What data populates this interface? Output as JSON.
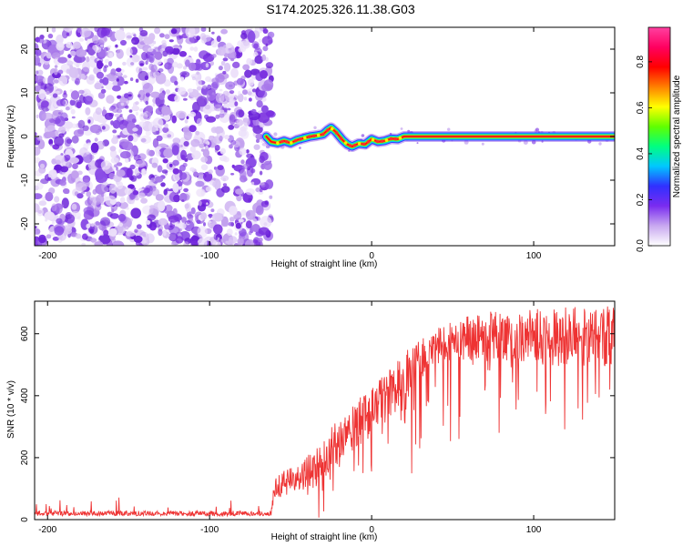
{
  "title": "S174.2025.326.11.38.G03",
  "chart_data": [
    {
      "type": "heatmap",
      "xlabel": "Height of straight line (km)",
      "ylabel": "Frequency (Hz)",
      "xlim": [
        -208,
        150
      ],
      "ylim": [
        -25,
        25
      ],
      "xticks": [
        -200,
        -100,
        0,
        100
      ],
      "yticks": [
        -20,
        -10,
        0,
        10,
        20
      ],
      "noise_region": {
        "x_from": -208,
        "x_to": -62,
        "note": "random purple speckle"
      },
      "frequency_trace": {
        "x": [
          -65,
          -62,
          -58,
          -54,
          -50,
          -46,
          -42,
          -38,
          -34,
          -30,
          -27,
          -25,
          -22,
          -18,
          -15,
          -12,
          -8,
          -4,
          0,
          4,
          8,
          12,
          16,
          20,
          150
        ],
        "y": [
          0,
          -1.2,
          -1.5,
          -1.0,
          -1.5,
          -0.8,
          -0.4,
          0.0,
          0.2,
          0.5,
          1.5,
          2.0,
          1.0,
          -0.8,
          -1.8,
          -2.3,
          -1.6,
          -1.8,
          -0.6,
          -1.2,
          -1.0,
          -0.5,
          -0.6,
          0.0,
          0.0
        ]
      },
      "colorbar": {
        "label": "Normalized spectral amplitude",
        "range": [
          0.0,
          0.95
        ],
        "ticks": [
          "0.0",
          "0.2",
          "0.4",
          "0.6",
          "0.8"
        ],
        "colors": [
          "#ffffff",
          "#c8a8f0",
          "#7a2cf0",
          "#3030ff",
          "#00c8ff",
          "#00ff80",
          "#60ff00",
          "#ffff00",
          "#ff8000",
          "#ff0000",
          "#ff0060",
          "#ff40a0"
        ]
      }
    },
    {
      "type": "line",
      "xlabel": "Height of straight line (km)",
      "ylabel": "SNR (10 * v/v)",
      "xlim": [
        -208,
        150
      ],
      "ylim": [
        0,
        705
      ],
      "xticks": [
        -200,
        -100,
        0,
        100
      ],
      "yticks": [
        0,
        200,
        400,
        600
      ],
      "color": "#ee3333",
      "envelope": {
        "x": [
          -208,
          -100,
          -62,
          -60,
          -50,
          -40,
          -30,
          -20,
          -10,
          0,
          10,
          20,
          30,
          40,
          50,
          70,
          100,
          130,
          150
        ],
        "base": [
          20,
          20,
          20,
          100,
          130,
          150,
          200,
          250,
          300,
          350,
          400,
          460,
          510,
          560,
          580,
          590,
          590,
          590,
          590
        ],
        "spread": [
          8,
          8,
          8,
          35,
          45,
          55,
          70,
          75,
          80,
          80,
          80,
          80,
          70,
          60,
          65,
          80,
          90,
          100,
          100
        ]
      }
    }
  ]
}
